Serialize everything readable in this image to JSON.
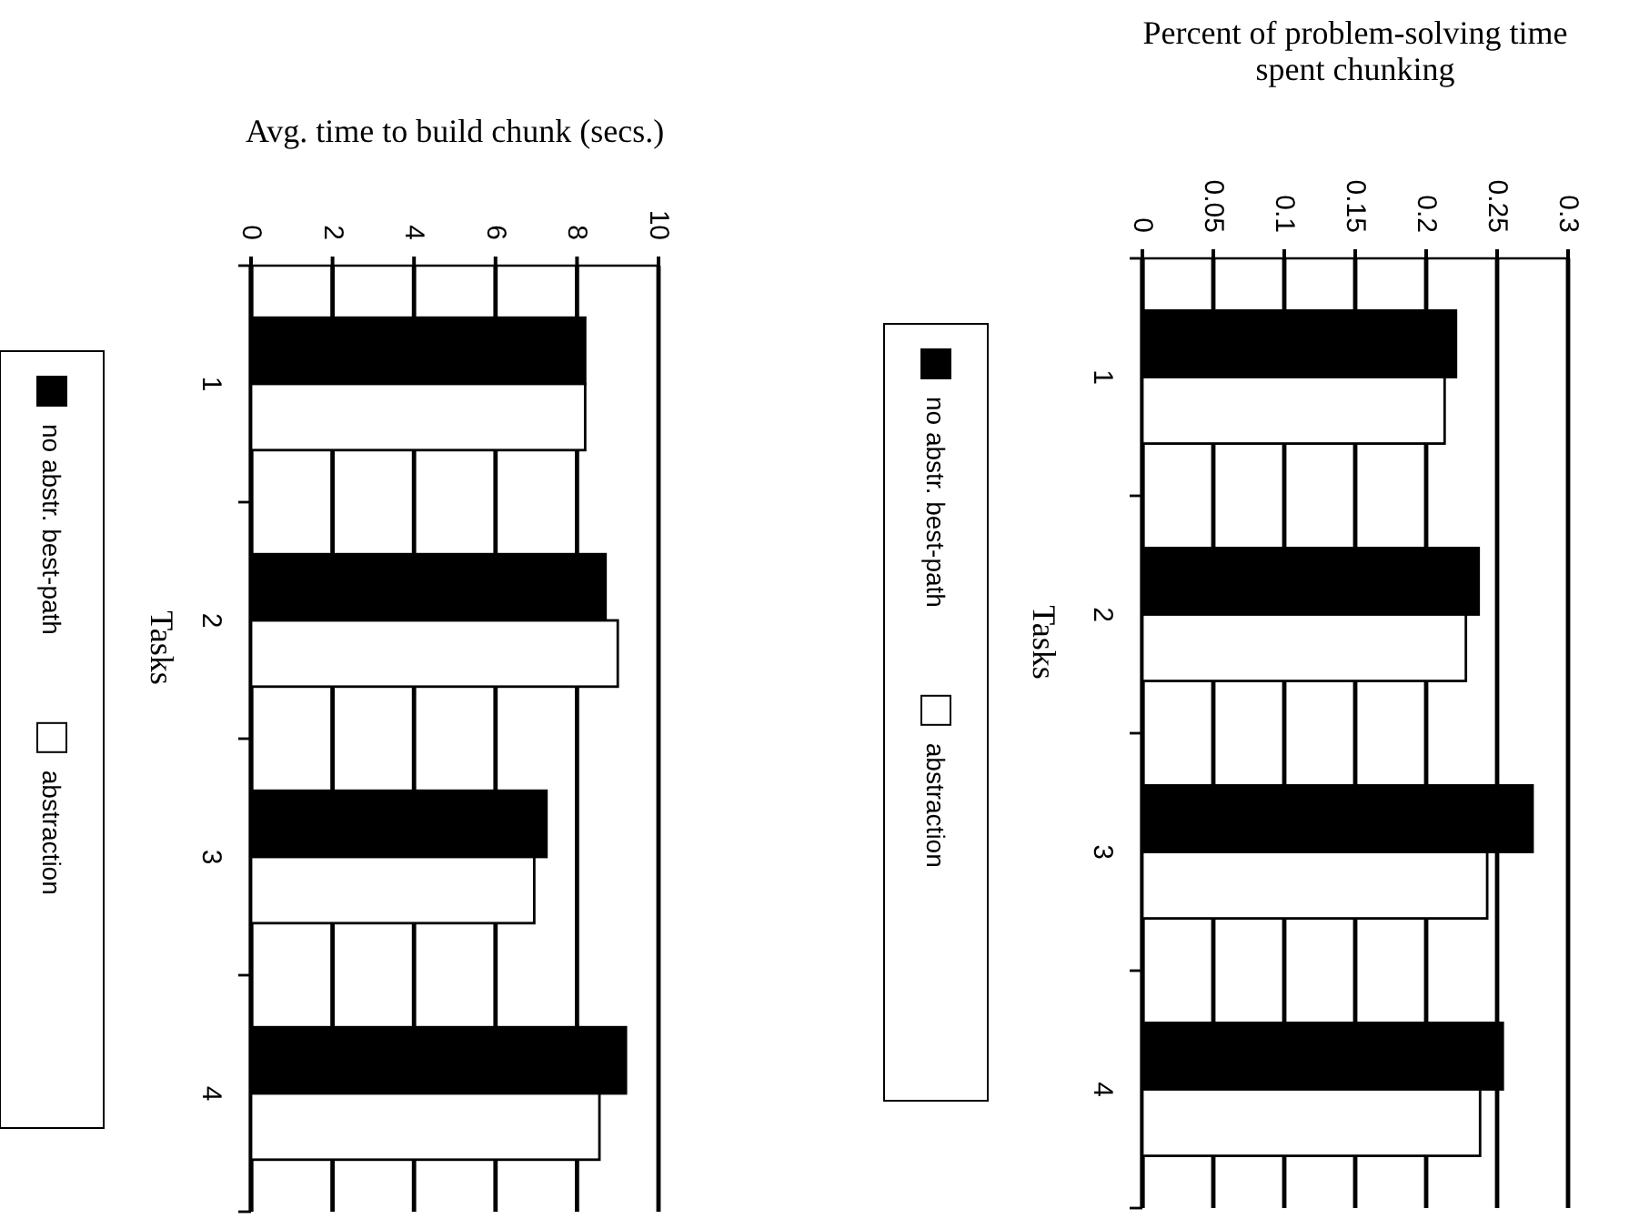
{
  "chart_data": [
    {
      "type": "bar",
      "orientation": "horizontal",
      "xlabel": "Avg. time to build chunk (secs.)",
      "ylabel": "Tasks",
      "categories": [
        "1",
        "2",
        "3",
        "4"
      ],
      "series": [
        {
          "name": "no abstr. best-path",
          "color": "#000000",
          "values": [
            8.2,
            8.7,
            7.25,
            9.2
          ]
        },
        {
          "name": "abstraction",
          "color": "#ffffff",
          "values": [
            8.2,
            9.0,
            6.95,
            8.55
          ]
        }
      ],
      "xlim": [
        0,
        10
      ],
      "xticks": [
        0,
        2,
        4,
        6,
        8,
        10
      ],
      "grid": "x",
      "legend": "left"
    },
    {
      "type": "bar",
      "orientation": "horizontal",
      "xlabel": "Percent of problem-solving time spent chunking",
      "ylabel": "Tasks",
      "categories": [
        "1",
        "2",
        "3",
        "4"
      ],
      "series": [
        {
          "name": "no abstr. best-path",
          "color": "#000000",
          "values": [
            0.221,
            0.237,
            0.275,
            0.254
          ]
        },
        {
          "name": "abstraction",
          "color": "#ffffff",
          "values": [
            0.213,
            0.228,
            0.243,
            0.238
          ]
        }
      ],
      "xlim": [
        0,
        0.3
      ],
      "xticks": [
        0,
        0.05,
        0.1,
        0.15,
        0.2,
        0.25,
        0.3
      ],
      "grid": "x",
      "legend": "left"
    }
  ]
}
